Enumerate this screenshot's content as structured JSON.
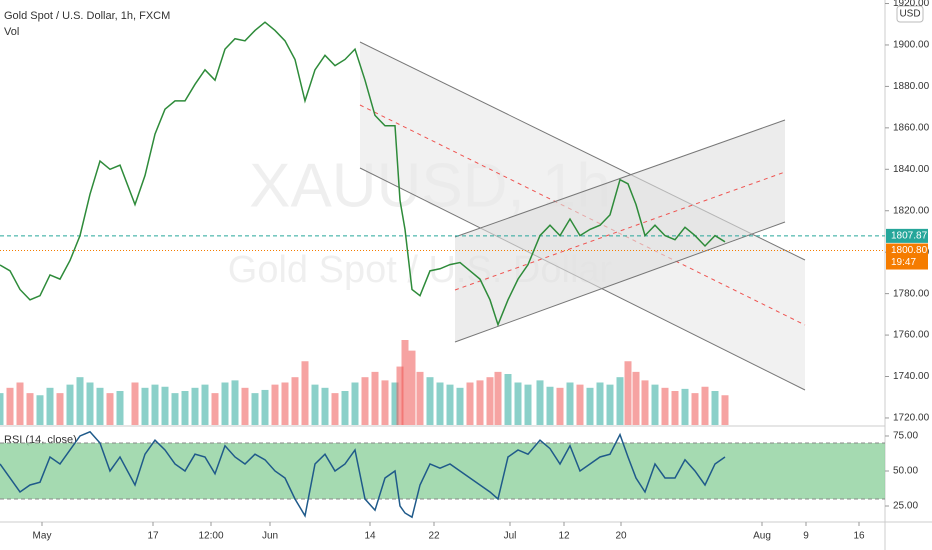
{
  "chart_data": [
    {
      "type": "line",
      "title": "Gold Spot / U.S. Dollar, 1h, FXCM",
      "subtitle": "Vol",
      "watermark": "XAUUSD, 1h",
      "watermark_subtitle": "Gold Spot / U.S. Dollar",
      "currency": "USD",
      "x": [
        0,
        20,
        40,
        60,
        80,
        100,
        120,
        140,
        160,
        180,
        200,
        220,
        240,
        270,
        290,
        310,
        330,
        350,
        370,
        390,
        410,
        430,
        450,
        470,
        490,
        510,
        530,
        550,
        570,
        590,
        610,
        630,
        650,
        670,
        690,
        710,
        730,
        750,
        770,
        790,
        800,
        810,
        824,
        840,
        860,
        880,
        900,
        920,
        940,
        960,
        980,
        996,
        1016,
        1036,
        1056,
        1080,
        1100,
        1120,
        1140,
        1160,
        1180,
        1200,
        1220,
        1240,
        1256,
        1272,
        1290,
        1310,
        1330,
        1350,
        1370,
        1390,
        1410,
        1430,
        1450
      ],
      "xlim": [
        0,
        1770
      ],
      "xticks": [
        {
          "value": 84,
          "label": "May"
        },
        {
          "value": 306,
          "label": "17"
        },
        {
          "value": 422,
          "label": "12:00"
        },
        {
          "value": 540,
          "label": "Jun"
        },
        {
          "value": 740,
          "label": "14"
        },
        {
          "value": 868,
          "label": "22"
        },
        {
          "value": 1020,
          "label": "Jul"
        },
        {
          "value": 1128,
          "label": "12"
        },
        {
          "value": 1242,
          "label": "20"
        },
        {
          "value": 1524,
          "label": "Aug"
        },
        {
          "value": 1612,
          "label": "9"
        },
        {
          "value": 1718,
          "label": "16"
        }
      ],
      "ylim": [
        1716.6,
        1921.7
      ],
      "yticks": [
        {
          "value": 1720,
          "label": "1720.00"
        },
        {
          "value": 1740,
          "label": "1740.00"
        },
        {
          "value": 1760,
          "label": "1760.00"
        },
        {
          "value": 1780,
          "label": "1780.00"
        },
        {
          "value": 1800,
          "label": "1800.00"
        },
        {
          "value": 1820,
          "label": "1820.00"
        },
        {
          "value": 1840,
          "label": "1840.00"
        },
        {
          "value": 1860,
          "label": "1860.00"
        },
        {
          "value": 1880,
          "label": "1880.00"
        },
        {
          "value": 1900,
          "label": "1900.00"
        },
        {
          "value": 1920,
          "label": "1920.00"
        }
      ],
      "y2lim": [
        0,
        400
      ],
      "price_lines": [
        {
          "value": 1807.87,
          "label": "1807.87",
          "color": "#26a69a"
        },
        {
          "value": 1800.8,
          "label": "1800.80",
          "color": "#f57c00",
          "countdown": "19:47"
        }
      ],
      "series": [
        {
          "name": "XAUUSD",
          "color": "#2e8b3a",
          "values": [
            1793.8,
            1791,
            1782,
            1777,
            1779,
            1789,
            1787,
            1796,
            1808,
            1828,
            1844,
            1840,
            1842,
            1823,
            1837,
            1857,
            1869,
            1873,
            1873,
            1881,
            1888,
            1883,
            1898,
            1903,
            1902,
            1907,
            1911,
            1907,
            1902,
            1893,
            1873,
            1888,
            1895,
            1890,
            1893,
            1898,
            1883,
            1866,
            1861,
            1861,
            1825,
            1811,
            1782,
            1779,
            1791,
            1792,
            1794,
            1795,
            1791,
            1787,
            1777,
            1765,
            1777,
            1787,
            1794,
            1808,
            1813,
            1808,
            1816,
            1808,
            1811,
            1813,
            1818,
            1835,
            1833,
            1823,
            1808,
            1813,
            1808,
            1806,
            1812,
            1808,
            1803,
            1808,
            1805
          ]
        },
        {
          "name": "Vol",
          "axis": "y2",
          "up_color": "#26a69a88",
          "down_color": "#ef535088",
          "values": [
            30,
            35,
            40,
            30,
            28,
            35,
            30,
            38,
            45,
            40,
            35,
            30,
            32,
            40,
            35,
            38,
            36,
            30,
            32,
            35,
            38,
            30,
            40,
            42,
            35,
            30,
            33,
            38,
            40,
            45,
            60,
            38,
            35,
            30,
            32,
            40,
            45,
            50,
            42,
            40,
            55,
            80,
            70,
            50,
            45,
            40,
            38,
            35,
            40,
            42,
            45,
            50,
            48,
            40,
            38,
            42,
            36,
            35,
            40,
            38,
            35,
            40,
            38,
            45,
            60,
            50,
            42,
            38,
            35,
            32,
            34,
            30,
            36,
            32,
            28
          ]
        }
      ]
    },
    {
      "type": "line",
      "title": "RSI (14, close)",
      "ylim": [
        15,
        80.7
      ],
      "yticks": [
        {
          "value": 25,
          "label": "25.00"
        },
        {
          "value": 50,
          "label": "50.00"
        },
        {
          "value": 75,
          "label": "75.00"
        }
      ],
      "band": [
        30,
        70
      ],
      "band_color": "#8fd19e",
      "series": [
        {
          "name": "RSI",
          "color": "#1f5a8a",
          "values": [
            55,
            45,
            35,
            40,
            42,
            60,
            55,
            65,
            75,
            78,
            70,
            50,
            60,
            40,
            62,
            72,
            65,
            55,
            50,
            62,
            60,
            48,
            68,
            60,
            55,
            62,
            58,
            50,
            45,
            30,
            18,
            55,
            62,
            50,
            55,
            65,
            30,
            22,
            45,
            50,
            25,
            20,
            17,
            40,
            55,
            52,
            55,
            50,
            45,
            40,
            35,
            30,
            60,
            65,
            62,
            72,
            66,
            55,
            68,
            50,
            55,
            60,
            62,
            76,
            60,
            45,
            35,
            55,
            45,
            45,
            58,
            50,
            40,
            55,
            60
          ]
        }
      ]
    }
  ]
}
